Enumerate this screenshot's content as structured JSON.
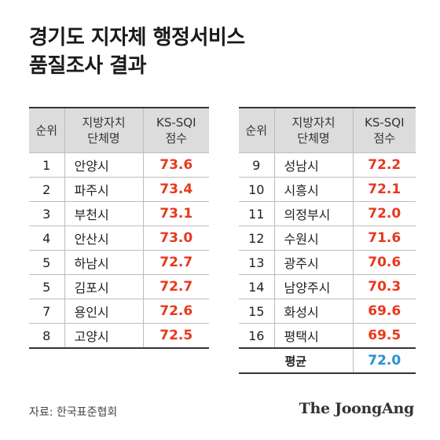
{
  "title": {
    "line1": "경기도 지자체 행정서비스",
    "line2": "품질조사 결과"
  },
  "headers": {
    "rank": "순위",
    "name_line1": "지방자치",
    "name_line2": "단체명",
    "score_line1": "KS-SQI",
    "score_line2": "점수"
  },
  "left_rows": [
    {
      "rank": "1",
      "name": "안양시",
      "score": "73.6"
    },
    {
      "rank": "2",
      "name": "파주시",
      "score": "73.4"
    },
    {
      "rank": "3",
      "name": "부천시",
      "score": "73.1"
    },
    {
      "rank": "4",
      "name": "안산시",
      "score": "73.0"
    },
    {
      "rank": "5",
      "name": "하남시",
      "score": "72.7"
    },
    {
      "rank": "5",
      "name": "김포시",
      "score": "72.7"
    },
    {
      "rank": "7",
      "name": "용인시",
      "score": "72.6"
    },
    {
      "rank": "8",
      "name": "고양시",
      "score": "72.5"
    }
  ],
  "right_rows": [
    {
      "rank": "9",
      "name": "성남시",
      "score": "72.2"
    },
    {
      "rank": "10",
      "name": "시흥시",
      "score": "72.1"
    },
    {
      "rank": "11",
      "name": "의정부시",
      "score": "72.0"
    },
    {
      "rank": "12",
      "name": "수원시",
      "score": "71.6"
    },
    {
      "rank": "13",
      "name": "광주시",
      "score": "70.6"
    },
    {
      "rank": "14",
      "name": "남양주시",
      "score": "70.3"
    },
    {
      "rank": "15",
      "name": "화성시",
      "score": "69.6"
    },
    {
      "rank": "16",
      "name": "평택시",
      "score": "69.5"
    }
  ],
  "average": {
    "label": "평균",
    "value": "72.0"
  },
  "source": "자료: 한국표준협회",
  "brand": "The JoongAng",
  "colors": {
    "score": "#e8381e",
    "average": "#2a8fd0",
    "header_bg": "#dcdcdc"
  }
}
